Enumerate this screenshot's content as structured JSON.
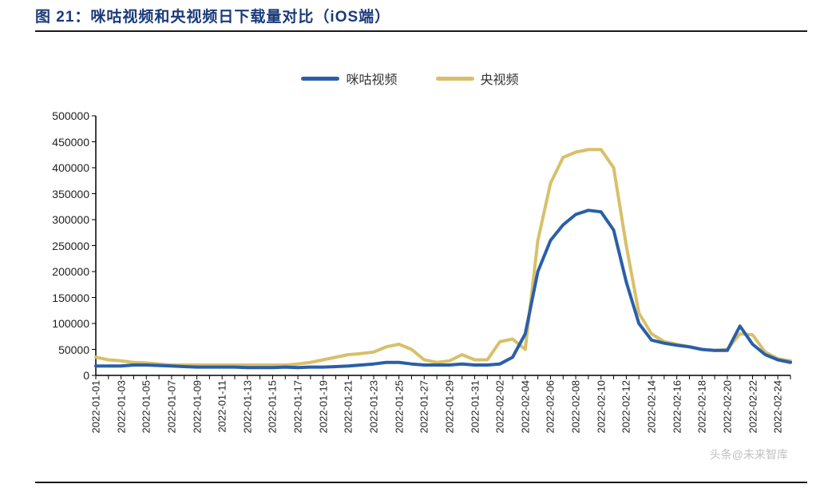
{
  "title": "图 21：咪咕视频和央视频日下载量对比（iOS端）",
  "title_color": "#1a3a7a",
  "title_fontsize": 19,
  "legend": {
    "items": [
      {
        "label": "咪咕视频",
        "color": "#2a5fa8"
      },
      {
        "label": "央视频",
        "color": "#d8c06a"
      }
    ],
    "swatch_line_width": 5
  },
  "chart": {
    "type": "line",
    "background_color": "#ffffff",
    "axis_color": "#000000",
    "axis_line_width": 1.5,
    "label_fontsize": 14,
    "x_label_fontsize": 13,
    "x_label_rotation_deg": 90,
    "line_width": 4,
    "ylim": [
      0,
      500000
    ],
    "ytick_step": 50000,
    "y_ticks": [
      0,
      50000,
      100000,
      150000,
      200000,
      250000,
      300000,
      350000,
      400000,
      450000,
      500000
    ],
    "x_labels_shown": [
      "2022-01-01",
      "2022-01-03",
      "2022-01-05",
      "2022-01-07",
      "2022-01-09",
      "2022-01-11",
      "2022-01-13",
      "2022-01-15",
      "2022-01-17",
      "2022-01-19",
      "2022-01-21",
      "2022-01-23",
      "2022-01-25",
      "2022-01-27",
      "2022-01-29",
      "2022-01-31",
      "2022-02-02",
      "2022-02-04",
      "2022-02-06",
      "2022-02-08",
      "2022-02-10",
      "2022-02-12",
      "2022-02-14",
      "2022-02-16",
      "2022-02-18",
      "2022-02-20",
      "2022-02-22",
      "2022-02-24"
    ],
    "series": [
      {
        "name": "咪咕视频",
        "color": "#2a5fa8",
        "values": [
          18000,
          18000,
          18000,
          20000,
          20000,
          19000,
          18000,
          17000,
          16000,
          16000,
          16000,
          16000,
          15000,
          15000,
          15000,
          16000,
          15000,
          16000,
          16000,
          17000,
          18000,
          20000,
          22000,
          25000,
          25000,
          22000,
          20000,
          20000,
          20000,
          22000,
          20000,
          20000,
          22000,
          35000,
          80000,
          200000,
          260000,
          290000,
          310000,
          318000,
          315000,
          280000,
          180000,
          100000,
          68000,
          62000,
          58000,
          55000,
          50000,
          48000,
          48000,
          95000,
          60000,
          40000,
          30000,
          25000
        ]
      },
      {
        "name": "央视频",
        "color": "#d8c06a",
        "values": [
          35000,
          30000,
          28000,
          25000,
          24000,
          22000,
          20000,
          20000,
          20000,
          20000,
          20000,
          20000,
          20000,
          20000,
          20000,
          20000,
          22000,
          25000,
          30000,
          35000,
          40000,
          42000,
          45000,
          55000,
          60000,
          50000,
          30000,
          25000,
          28000,
          40000,
          30000,
          30000,
          65000,
          70000,
          50000,
          260000,
          370000,
          420000,
          430000,
          435000,
          435000,
          400000,
          250000,
          120000,
          80000,
          65000,
          60000,
          55000,
          50000,
          48000,
          50000,
          80000,
          78000,
          45000,
          32000,
          28000
        ]
      }
    ]
  },
  "watermark": "头条@未来智库"
}
